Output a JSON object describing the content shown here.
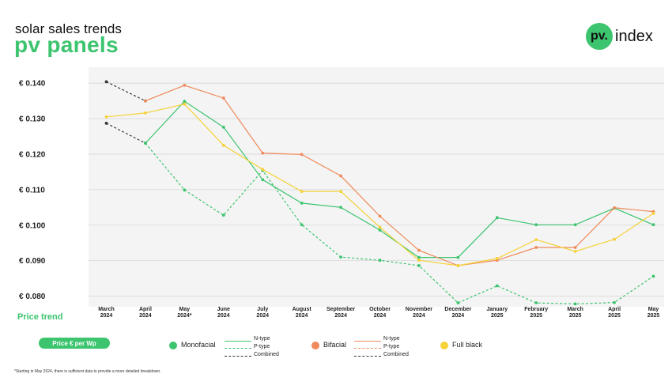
{
  "header": {
    "subtitle": "solar sales trends",
    "title": "pv panels"
  },
  "logo": {
    "mark": "pv.",
    "name": "index"
  },
  "price_trend_label": "Price trend",
  "unit_pill": "Price € per Wp",
  "footnote": "*Starting in May 2024, there is sufficient data to provide a more detailed breakdown.",
  "legend": {
    "monofacial": "Monofacial",
    "bifacial": "Bifacial",
    "full_black": "Full black",
    "n_type": "N-type",
    "p_type": "P-type",
    "combined": "Combined"
  },
  "colors": {
    "green": "#3cc46e",
    "orange": "#ef8a5b",
    "yellow": "#f5d238",
    "black": "#333333",
    "bg": "#f4f4f4"
  },
  "chart_data": {
    "type": "line",
    "y_tick_labels": [
      "€ 0.080",
      "€ 0.090",
      "€ 0.100",
      "€ 0.110",
      "€ 0.120",
      "€ 0.130",
      "€ 0.140"
    ],
    "y_ticks": [
      0.08,
      0.09,
      0.1,
      0.11,
      0.12,
      0.13,
      0.14
    ],
    "ylim": [
      0.077,
      0.1445
    ],
    "grid": true,
    "categories": [
      [
        "March",
        "2024"
      ],
      [
        "April",
        "2024"
      ],
      [
        "May",
        "2024*"
      ],
      [
        "June",
        "2024"
      ],
      [
        "July",
        "2024"
      ],
      [
        "August",
        "2024"
      ],
      [
        "September",
        "2024"
      ],
      [
        "October",
        "2024"
      ],
      [
        "November",
        "2024"
      ],
      [
        "December",
        "2024"
      ],
      [
        "January",
        "2025"
      ],
      [
        "February",
        "2025"
      ],
      [
        "March",
        "2025"
      ],
      [
        "April",
        "2025"
      ],
      [
        "May",
        "2025"
      ]
    ],
    "series": [
      {
        "key": "mono_combined",
        "color": "#333333",
        "dash": true,
        "values": [
          0.1287,
          0.1231,
          null,
          null,
          null,
          null,
          null,
          null,
          null,
          null,
          null,
          null,
          null,
          null,
          null
        ]
      },
      {
        "key": "bifacial_combined",
        "color": "#333333",
        "dash": true,
        "values": [
          0.1404,
          0.135,
          null,
          null,
          null,
          null,
          null,
          null,
          null,
          null,
          null,
          null,
          null,
          null,
          null
        ]
      },
      {
        "key": "mono_p",
        "color": "#3cc46e",
        "dash": true,
        "values": [
          null,
          0.1231,
          0.1099,
          0.1028,
          0.1154,
          0.1001,
          0.091,
          0.0901,
          0.0886,
          0.0781,
          0.0829,
          0.0781,
          0.0778,
          0.0782,
          0.0856
        ]
      },
      {
        "key": "mono_n",
        "color": "#3cc46e",
        "dash": false,
        "values": [
          null,
          0.1231,
          0.1349,
          0.1276,
          0.1128,
          0.1062,
          0.105,
          0.0986,
          0.0909,
          0.0909,
          0.1021,
          0.1001,
          0.1001,
          0.1048,
          0.1001
        ]
      },
      {
        "key": "bifacial_n",
        "color": "#ef8a5b",
        "dash": false,
        "values": [
          null,
          0.135,
          0.1394,
          0.1358,
          0.1203,
          0.1199,
          0.1139,
          0.1025,
          0.0929,
          0.0886,
          0.0901,
          0.0937,
          0.0937,
          0.1049,
          0.1038
        ]
      },
      {
        "key": "full_black",
        "color": "#f5d238",
        "dash": false,
        "values": [
          0.1305,
          0.1316,
          0.1341,
          0.1225,
          0.1157,
          0.1095,
          0.1095,
          0.0994,
          0.0901,
          0.0886,
          0.0906,
          0.0959,
          0.0926,
          0.096,
          0.1033
        ]
      }
    ]
  }
}
